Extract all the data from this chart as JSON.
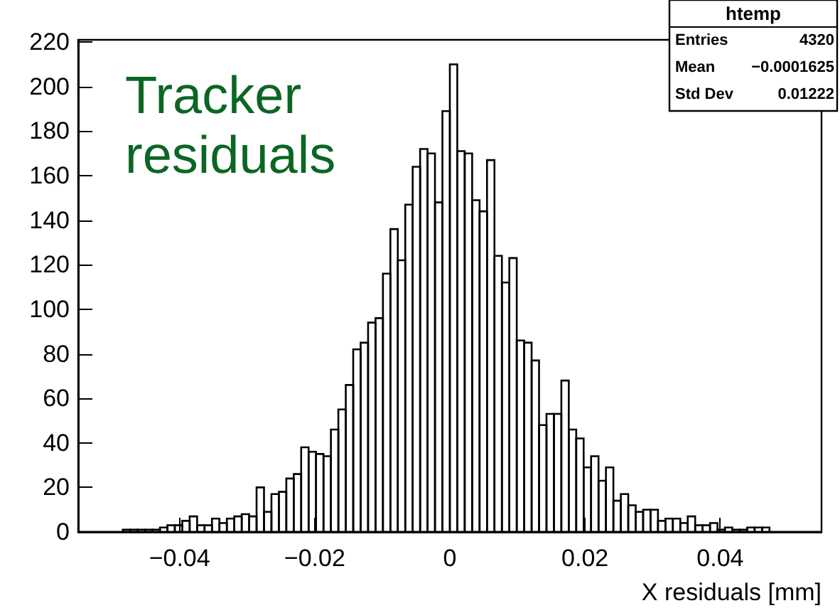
{
  "chart_data": {
    "type": "histogram",
    "xlabel": "X residuals [mm]",
    "bins": [
      -0.055,
      -0.0539,
      -0.0528,
      -0.0517,
      -0.0506,
      -0.0495,
      -0.0484,
      -0.0473,
      -0.0462,
      -0.0451,
      -0.044,
      -0.0429,
      -0.0418,
      -0.0407,
      -0.0396,
      -0.0385,
      -0.0374,
      -0.0363,
      -0.0352,
      -0.0341,
      -0.033,
      -0.0319,
      -0.0308,
      -0.0297,
      -0.0286,
      -0.0275,
      -0.0264,
      -0.0253,
      -0.0242,
      -0.0231,
      -0.022,
      -0.0209,
      -0.0198,
      -0.0187,
      -0.0176,
      -0.0165,
      -0.0154,
      -0.0143,
      -0.0132,
      -0.0121,
      -0.011,
      -0.0099,
      -0.0088,
      -0.0077,
      -0.0066,
      -0.0055,
      -0.0044,
      -0.0033,
      -0.0022,
      -0.0011,
      0,
      0.0011,
      0.0022,
      0.0033,
      0.0044,
      0.0055,
      0.0066,
      0.0077,
      0.0088,
      0.0099,
      0.011,
      0.0121,
      0.0132,
      0.0143,
      0.0154,
      0.0165,
      0.0176,
      0.0187,
      0.0198,
      0.0209,
      0.022,
      0.0231,
      0.0242,
      0.0253,
      0.0264,
      0.0275,
      0.0286,
      0.0297,
      0.0308,
      0.0319,
      0.033,
      0.0341,
      0.0352,
      0.0363,
      0.0374,
      0.0385,
      0.0396,
      0.0407,
      0.0418,
      0.0429,
      0.044,
      0.0451,
      0.0462,
      0.0473,
      0.0484,
      0.0495,
      0.0506,
      0.0517,
      0.0528,
      0.0539,
      0.055
    ],
    "values": [
      0,
      0,
      0,
      0,
      0,
      0,
      1,
      1,
      1,
      1,
      1,
      2,
      3,
      3,
      5,
      7,
      3,
      3,
      6,
      4,
      6,
      7,
      8,
      7,
      20,
      9,
      17,
      18,
      24,
      26,
      38,
      36,
      35,
      34,
      46,
      55,
      66,
      82,
      85,
      94,
      96,
      116,
      136,
      122,
      147,
      164,
      172,
      170,
      148,
      189,
      210,
      171,
      170,
      149,
      144,
      167,
      124,
      112,
      123,
      86,
      85,
      77,
      48,
      53,
      53,
      68,
      46,
      42,
      29,
      34,
      23,
      29,
      14,
      17,
      12,
      9,
      10,
      10,
      5,
      6,
      6,
      4,
      7,
      3,
      3,
      4,
      1,
      2,
      1,
      1,
      2,
      2,
      2,
      0,
      0,
      0,
      0,
      0,
      0,
      0
    ],
    "color": "#000000",
    "xlim": [
      -0.055,
      0.055
    ],
    "xticks": [
      {
        "value": -0.04,
        "label": "−0.04"
      },
      {
        "value": -0.02,
        "label": "−0.02"
      },
      0,
      0.02,
      0.04
    ],
    "ylim": [
      0,
      221
    ],
    "yticks": [
      0,
      20,
      40,
      60,
      80,
      100,
      120,
      140,
      160,
      180,
      200,
      220
    ],
    "grid": false,
    "annotations": [
      "Tracker residuals",
      "htemp",
      "Entries",
      "4320",
      "Mean",
      "−0.0001625",
      "Std Dev",
      "0.01222"
    ]
  }
}
